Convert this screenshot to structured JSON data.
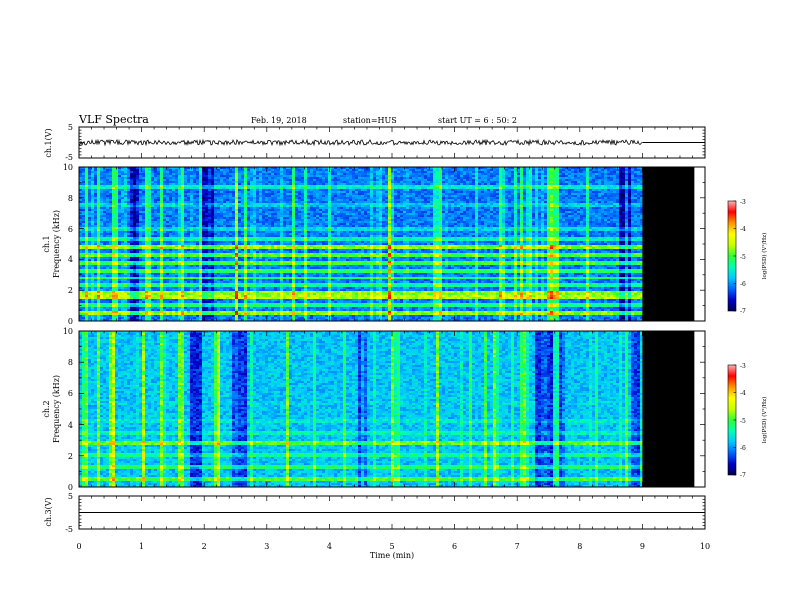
{
  "header": {
    "title": "VLF Spectra",
    "date": "Feb. 19, 2018",
    "station": "station=HUS",
    "start": "start UT =  6 : 50: 2"
  },
  "colors": {
    "background": "#ffffff",
    "axes": "#000000",
    "nodata": "#000000",
    "colormap": [
      "#000050",
      "#0000c8",
      "#0064ff",
      "#00c8ff",
      "#00ffb4",
      "#32ff32",
      "#c8ff00",
      "#ffff00",
      "#ff9600",
      "#ff0000",
      "#ffb4b4"
    ]
  },
  "chart_data": [
    {
      "type": "line",
      "name": "ch1-waveform",
      "ylabel": "ch.1(V)",
      "ylim": [
        -5,
        5
      ],
      "yticks": [
        "5",
        "-5"
      ],
      "xlim": [
        0,
        10
      ],
      "data_end_min": 9.0,
      "noise_amplitude_v": 0.8,
      "flat_level_v": 0
    },
    {
      "type": "heatmap",
      "name": "ch1-spectrogram",
      "ylabel_line1": "ch.1",
      "ylabel_line2": "Frequency (kHz)",
      "ylim": [
        0,
        10
      ],
      "yticks": [
        "0",
        "2",
        "4",
        "6",
        "8",
        "10"
      ],
      "xlim": [
        0,
        10
      ],
      "data_end_min": 9.0,
      "nodata_end_min": 9.83,
      "base_level": 0.22,
      "bands_khz": [
        {
          "f": 0.5,
          "level": 0.55
        },
        {
          "f": 1.0,
          "level": 0.42
        },
        {
          "f": 1.6,
          "level": 0.58
        },
        {
          "f": 1.8,
          "level": 0.55
        },
        {
          "f": 2.3,
          "level": 0.4
        },
        {
          "f": 2.8,
          "level": 0.45
        },
        {
          "f": 3.3,
          "level": 0.45
        },
        {
          "f": 3.8,
          "level": 0.48
        },
        {
          "f": 4.3,
          "level": 0.5
        },
        {
          "f": 4.8,
          "level": 0.55
        },
        {
          "f": 5.3,
          "level": 0.38
        },
        {
          "f": 6.0,
          "level": 0.32
        },
        {
          "f": 7.5,
          "level": 0.3
        },
        {
          "f": 8.7,
          "level": 0.36
        }
      ],
      "bursts_min": [
        0.1,
        0.3,
        0.55,
        1.05,
        1.3,
        1.62,
        2.5,
        2.62,
        3.4,
        4.95,
        5.75,
        6.72,
        7.05,
        7.5,
        7.6
      ],
      "quiet_min": [
        [
          0.78,
          0.92
        ],
        [
          1.95,
          2.12
        ],
        [
          8.6,
          8.8
        ]
      ],
      "colorbar": {
        "label": "log(PSD) (V²/Hz)",
        "ticks": [
          "-3",
          "-4",
          "-5",
          "-6",
          "-7"
        ],
        "range": [
          -7,
          -3
        ]
      }
    },
    {
      "type": "heatmap",
      "name": "ch2-spectrogram",
      "ylabel_line1": "ch.2",
      "ylabel_line2": "Frequency (kHz)",
      "ylim": [
        0,
        10
      ],
      "yticks": [
        "0",
        "2",
        "4",
        "6",
        "8",
        "10"
      ],
      "xlim": [
        0,
        10
      ],
      "data_end_min": 9.0,
      "nodata_end_min": 9.83,
      "base_level": 0.3,
      "bands_khz": [
        {
          "f": 0.5,
          "level": 0.5
        },
        {
          "f": 1.3,
          "level": 0.45
        },
        {
          "f": 2.0,
          "level": 0.42
        },
        {
          "f": 2.8,
          "level": 0.52
        },
        {
          "f": 3.5,
          "level": 0.38
        },
        {
          "f": 4.2,
          "level": 0.35
        },
        {
          "f": 5.4,
          "level": 0.32
        }
      ],
      "bursts_min": [
        0.1,
        0.3,
        0.5,
        1.0,
        1.3,
        1.6,
        2.2,
        3.3,
        5.0,
        5.7,
        6.6,
        7.1,
        7.6
      ],
      "quiet_min": [
        [
          1.75,
          1.95
        ],
        [
          2.4,
          2.65
        ],
        [
          4.45,
          4.6
        ],
        [
          7.28,
          7.75
        ],
        [
          8.8,
          8.95
        ]
      ],
      "colorbar": {
        "label": "log(PSD) (V²/Hz)",
        "ticks": [
          "-3",
          "-4",
          "-5",
          "-6",
          "-7"
        ],
        "range": [
          -7,
          -3
        ]
      }
    },
    {
      "type": "line",
      "name": "ch3-waveform",
      "ylabel": "ch.3(V)",
      "ylim": [
        -5,
        5
      ],
      "yticks": [
        "5",
        "-5"
      ],
      "xlim": [
        0,
        10
      ],
      "data_end_min": 10,
      "noise_amplitude_v": 0,
      "flat_level_v": 0,
      "xticks": [
        "0",
        "1",
        "2",
        "3",
        "4",
        "5",
        "6",
        "7",
        "8",
        "9",
        "10"
      ],
      "xlabel": "Time (min)"
    }
  ]
}
